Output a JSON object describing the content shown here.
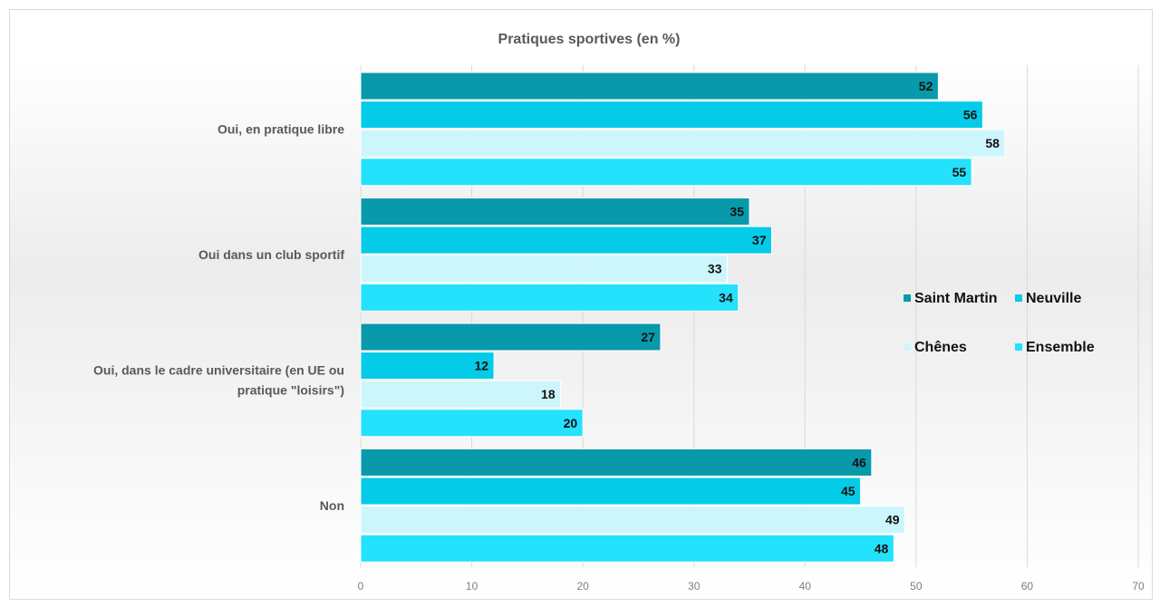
{
  "chart_data": {
    "type": "bar",
    "orientation": "horizontal",
    "title": "Pratiques sportives (en %)",
    "categories": [
      [
        "Oui, en pratique libre"
      ],
      [
        "Oui dans un club sportif"
      ],
      [
        "Oui, dans le cadre universitaire (en UE ou",
        "pratique \"loisirs\")"
      ],
      [
        "Non"
      ]
    ],
    "series": [
      {
        "name": "Saint Martin",
        "color": "#0899AB",
        "values": [
          52,
          35,
          27,
          46
        ]
      },
      {
        "name": "Neuville",
        "color": "#04CBE8",
        "values": [
          56,
          37,
          12,
          45
        ]
      },
      {
        "name": "Chênes",
        "color": "#CDF6FC",
        "values": [
          58,
          33,
          18,
          49
        ]
      },
      {
        "name": "Ensemble",
        "color": "#24E1FC",
        "values": [
          55,
          34,
          20,
          48
        ]
      }
    ],
    "xlim": [
      0,
      70
    ],
    "xticks": [
      "0",
      "10",
      "20",
      "30",
      "40",
      "50",
      "60",
      "70"
    ],
    "grid": true,
    "legend_position": "right"
  }
}
